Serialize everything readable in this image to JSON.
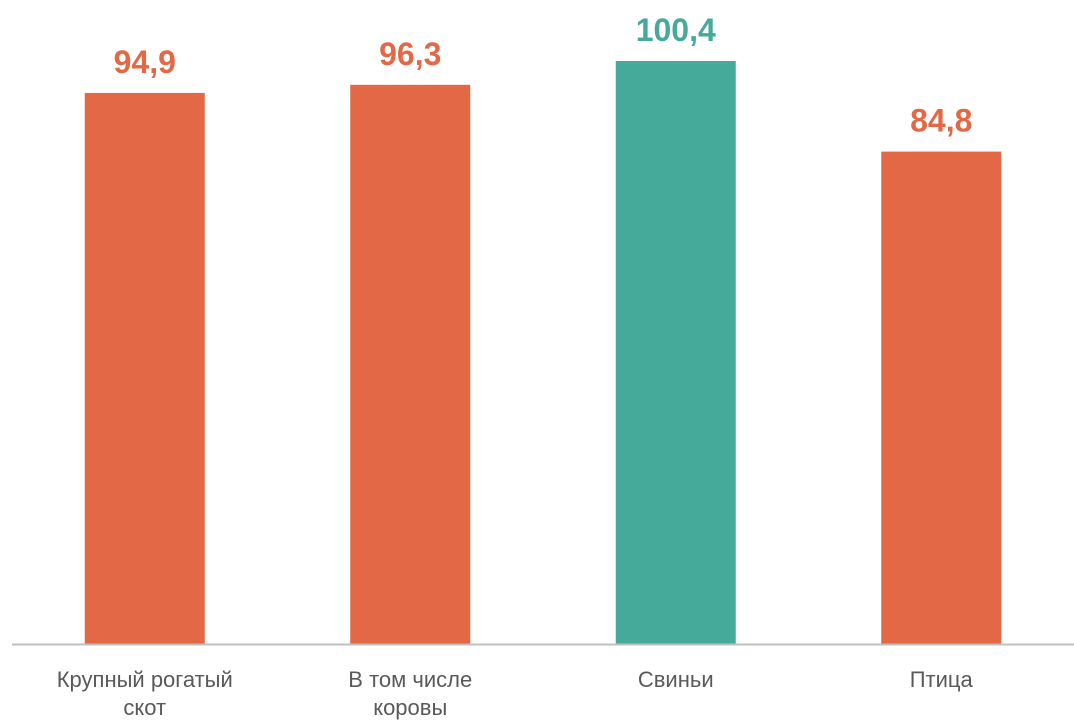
{
  "chart_data": {
    "type": "bar",
    "categories": [
      [
        "Крупный рогатый",
        "скот"
      ],
      [
        "В том числе",
        "коровы"
      ],
      [
        "Свиньи"
      ],
      [
        "Птица"
      ]
    ],
    "values": [
      94.9,
      96.3,
      100.4,
      84.8
    ],
    "value_labels": [
      "94,9",
      "96,3",
      "100,4",
      "84,8"
    ],
    "ylim": [
      0,
      110
    ],
    "grid": false,
    "legend": "none",
    "colors": {
      "below_100": "#E36846",
      "above_100": "#45AA9A",
      "axis": "#BFBFBF",
      "category_text": "#595959"
    }
  }
}
